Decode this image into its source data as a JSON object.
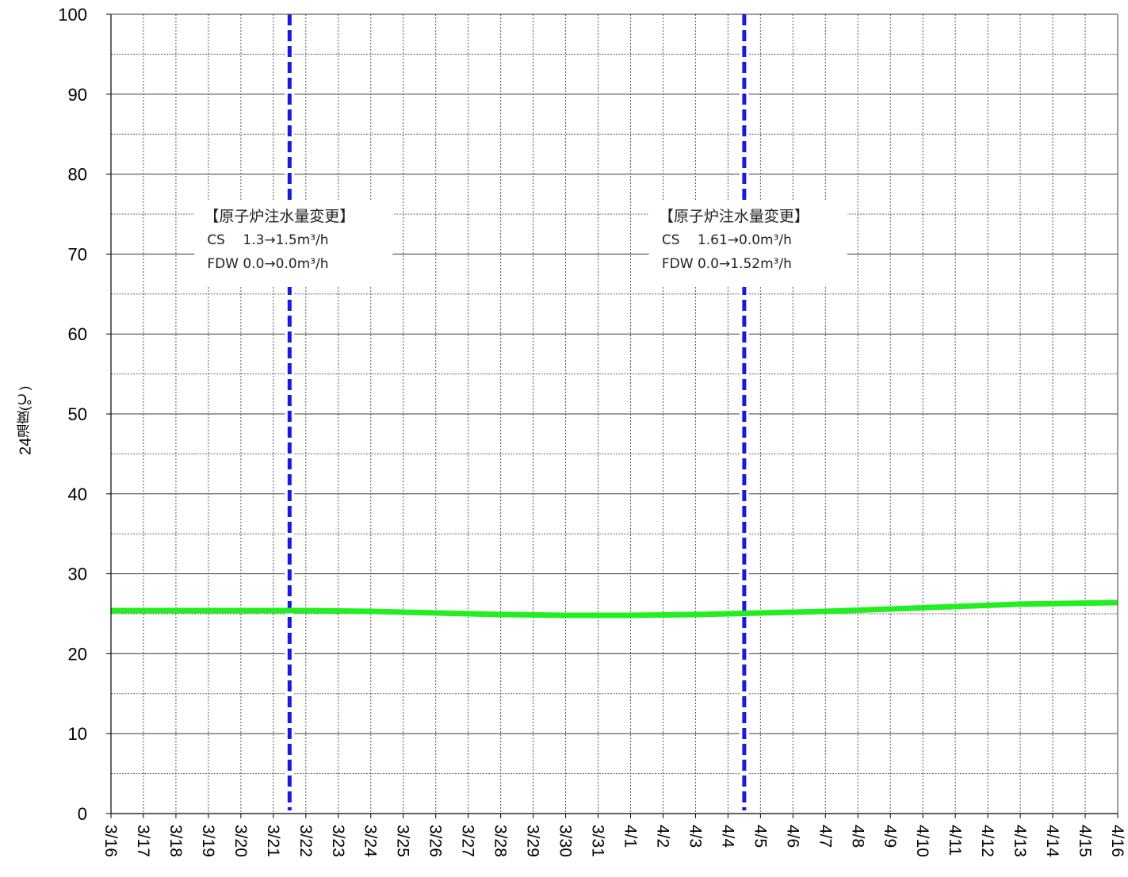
{
  "chart_data": {
    "type": "line",
    "ylabel_number": "24",
    "ylabel": "温度(℃)",
    "ylim": [
      0,
      100
    ],
    "y_ticks": [
      "0",
      "10",
      "20",
      "30",
      "40",
      "50",
      "60",
      "70",
      "80",
      "90",
      "100"
    ],
    "x_tick_labels": [
      "3/16",
      "3/17",
      "3/18",
      "3/19",
      "3/20",
      "3/21",
      "3/22",
      "3/23",
      "3/24",
      "3/25",
      "3/26",
      "3/27",
      "3/28",
      "3/29",
      "3/30",
      "3/31",
      "4/1",
      "4/2",
      "4/3",
      "4/4",
      "4/5",
      "4/6",
      "4/7",
      "4/8",
      "4/9",
      "4/10",
      "4/11",
      "4/12",
      "4/13",
      "4/14",
      "4/15",
      "4/16"
    ],
    "x_range": [
      "3/16",
      "4/16"
    ],
    "grid": true,
    "series": [
      {
        "color": "#22ee22",
        "points": [
          {
            "x": "3/16",
            "y": 25.4
          },
          {
            "x": "3/18",
            "y": 25.4
          },
          {
            "x": "3/20",
            "y": 25.4
          },
          {
            "x": "3/22",
            "y": 25.4
          },
          {
            "x": "3/24",
            "y": 25.3
          },
          {
            "x": "3/26",
            "y": 25.1
          },
          {
            "x": "3/28",
            "y": 24.9
          },
          {
            "x": "3/30",
            "y": 24.8
          },
          {
            "x": "4/1",
            "y": 24.8
          },
          {
            "x": "4/3",
            "y": 24.9
          },
          {
            "x": "4/5",
            "y": 25.1
          },
          {
            "x": "4/7",
            "y": 25.3
          },
          {
            "x": "4/9",
            "y": 25.6
          },
          {
            "x": "4/11",
            "y": 25.9
          },
          {
            "x": "4/13",
            "y": 26.2
          },
          {
            "x": "4/16",
            "y": 26.4
          }
        ]
      }
    ],
    "event_lines": [
      {
        "x": "3/21 12:00",
        "color": "#1a1adc",
        "title": "【原子炉注水量変更】",
        "line1": "CS　 1.3→1.5m³/h",
        "line2": "FDW  0.0→0.0m³/h"
      },
      {
        "x": "4/4 12:00",
        "color": "#1a1adc",
        "title": "【原子炉注水量変更】",
        "line1": "CS　 1.61→0.0m³/h",
        "line2": "FDW  0.0→1.52m³/h"
      }
    ]
  }
}
